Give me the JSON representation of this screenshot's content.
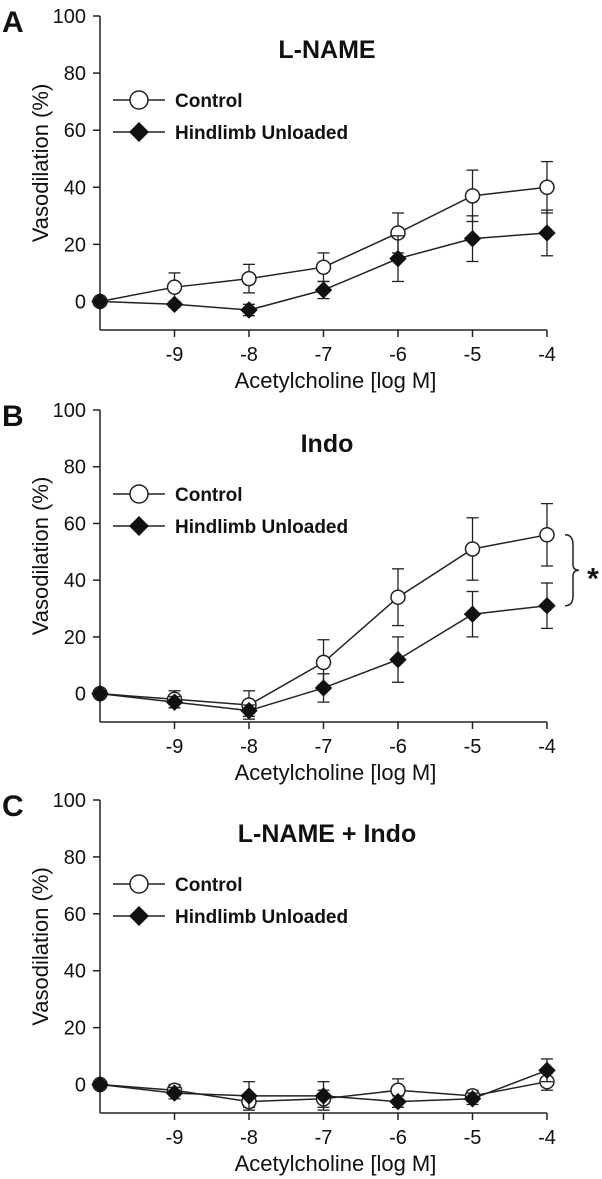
{
  "chart_data": [
    {
      "type": "line",
      "panel_label": "A",
      "title": "L-NAME",
      "xlabel": "Acetylcholine [log M]",
      "ylabel": "Vasodilation (%)",
      "xlim": [
        -10,
        -4
      ],
      "ylim": [
        -10,
        100
      ],
      "x_ticks": [
        "-9",
        "-8",
        "-7",
        "-6",
        "-5",
        "-4"
      ],
      "y_ticks": [
        "0",
        "20",
        "40",
        "60",
        "80",
        "100"
      ],
      "legend_position": "top-left",
      "significance": "",
      "series": [
        {
          "name": "Control",
          "marker": "open-circle",
          "x": [
            -10,
            -9,
            -8,
            -7,
            -6,
            -5,
            -4
          ],
          "values": [
            0,
            5,
            8,
            12,
            24,
            37,
            40
          ],
          "error": [
            0,
            5,
            5,
            5,
            7,
            9,
            9
          ]
        },
        {
          "name": "Hindlimb Unloaded",
          "marker": "filled-diamond",
          "x": [
            -10,
            -9,
            -8,
            -7,
            -6,
            -5,
            -4
          ],
          "values": [
            0,
            -1,
            -3,
            4,
            15,
            22,
            24
          ],
          "error": [
            0,
            1,
            2,
            3,
            8,
            8,
            8
          ]
        }
      ]
    },
    {
      "type": "line",
      "panel_label": "B",
      "title": "Indo",
      "xlabel": "Acetylcholine [log M]",
      "ylabel": "Vasodilation (%)",
      "xlim": [
        -10,
        -4
      ],
      "ylim": [
        -10,
        100
      ],
      "x_ticks": [
        "-9",
        "-8",
        "-7",
        "-6",
        "-5",
        "-4"
      ],
      "y_ticks": [
        "0",
        "20",
        "40",
        "60",
        "80",
        "100"
      ],
      "legend_position": "top-left",
      "significance": "*",
      "series": [
        {
          "name": "Control",
          "marker": "open-circle",
          "x": [
            -10,
            -9,
            -8,
            -7,
            -6,
            -5,
            -4
          ],
          "values": [
            0,
            -2,
            -4,
            11,
            34,
            51,
            56
          ],
          "error": [
            0,
            3,
            5,
            8,
            10,
            11,
            11
          ]
        },
        {
          "name": "Hindlimb Unloaded",
          "marker": "filled-diamond",
          "x": [
            -10,
            -9,
            -8,
            -7,
            -6,
            -5,
            -4
          ],
          "values": [
            0,
            -3,
            -6,
            2,
            12,
            28,
            31
          ],
          "error": [
            0,
            2,
            2,
            5,
            8,
            8,
            8
          ]
        }
      ]
    },
    {
      "type": "line",
      "panel_label": "C",
      "title": "L-NAME + Indo",
      "xlabel": "Acetylcholine [log M]",
      "ylabel": "Vasodilation (%)",
      "xlim": [
        -10,
        -4
      ],
      "ylim": [
        -10,
        100
      ],
      "x_ticks": [
        "-9",
        "-8",
        "-7",
        "-6",
        "-5",
        "-4"
      ],
      "y_ticks": [
        "0",
        "20",
        "40",
        "60",
        "80",
        "100"
      ],
      "legend_position": "top-left",
      "significance": "",
      "series": [
        {
          "name": "Control",
          "marker": "open-circle",
          "x": [
            -10,
            -9,
            -8,
            -7,
            -6,
            -5,
            -4
          ],
          "values": [
            0,
            -2,
            -6,
            -5,
            -2,
            -4,
            1
          ],
          "error": [
            0,
            2,
            2,
            3,
            4,
            2,
            3
          ]
        },
        {
          "name": "Hindlimb Unloaded",
          "marker": "filled-diamond",
          "x": [
            -10,
            -9,
            -8,
            -7,
            -6,
            -5,
            -4
          ],
          "values": [
            0,
            -3,
            -4,
            -4,
            -6,
            -5,
            5
          ],
          "error": [
            0,
            2,
            5,
            5,
            2,
            2,
            4
          ]
        }
      ]
    }
  ]
}
